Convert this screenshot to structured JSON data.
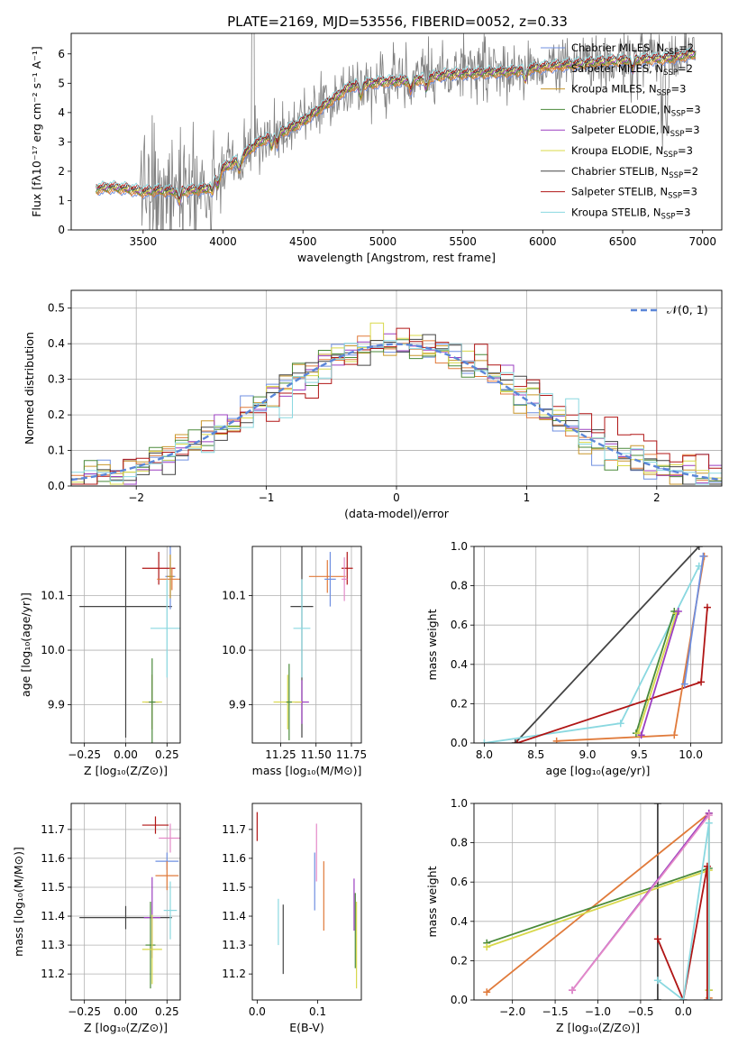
{
  "figure": {
    "title": "PLATE=2169, MJD=53556, FIBERID=0052, z=0.33"
  },
  "chart_data": [
    {
      "id": "spectrum",
      "type": "line",
      "xlabel": "wavelength [Angstrom, rest frame]",
      "ylabel": "Flux [fλ10⁻¹⁷ erg cm⁻² s⁻¹ A⁻¹]",
      "xlim": [
        3050,
        7120
      ],
      "ylim": [
        0,
        6.7
      ],
      "xticks": [
        3500,
        4000,
        4500,
        5000,
        5500,
        6000,
        6500,
        7000
      ],
      "yticks": [
        0,
        1,
        2,
        3,
        4,
        5,
        6
      ],
      "grid": false,
      "legend_placement": "top-right",
      "data_color": "#808080",
      "continuum": {
        "x": [
          3200,
          3300,
          3400,
          3500,
          3600,
          3700,
          3800,
          3900,
          4000,
          4100,
          4200,
          4300,
          4400,
          4500,
          4600,
          4700,
          4800,
          5000,
          5200,
          5400,
          5600,
          5800,
          6000,
          6200,
          6400,
          6600,
          6800,
          6950
        ],
        "y": [
          1.4,
          1.45,
          1.4,
          1.3,
          1.35,
          1.3,
          1.35,
          1.4,
          2.1,
          2.4,
          2.9,
          3.2,
          3.4,
          3.7,
          4.1,
          4.5,
          4.9,
          5.05,
          5.1,
          5.3,
          5.35,
          5.4,
          5.55,
          5.65,
          5.75,
          5.8,
          5.85,
          6.0
        ]
      },
      "series": [
        {
          "name": "Chabrier MILES, N_SSP=2",
          "label": "Chabrier MILES, N",
          "sub": "SSP",
          "suffix": "=2",
          "color": "#6f8fe0"
        },
        {
          "name": "Salpeter MILES, N_SSP=2",
          "label": "Salpeter MILES, N",
          "sub": "SSP",
          "suffix": "=2",
          "color": "#e07a3a"
        },
        {
          "name": "Kroupa MILES, N_SSP=3",
          "label": "Kroupa MILES, N",
          "sub": "SSP",
          "suffix": "=3",
          "color": "#c8962a"
        },
        {
          "name": "Chabrier ELODIE, N_SSP=3",
          "label": "Chabrier ELODIE, N",
          "sub": "SSP",
          "suffix": "=3",
          "color": "#4a8a3a"
        },
        {
          "name": "Salpeter ELODIE, N_SSP=3",
          "label": "Salpeter ELODIE, N",
          "sub": "SSP",
          "suffix": "=3",
          "color": "#9b3fc0"
        },
        {
          "name": "Kroupa ELODIE, N_SSP=3",
          "label": "Kroupa ELODIE, N",
          "sub": "SSP",
          "suffix": "=3",
          "color": "#d8d84a"
        },
        {
          "name": "Chabrier STELIB, N_SSP=2",
          "label": "Chabrier STELIB, N",
          "sub": "SSP",
          "suffix": "=2",
          "color": "#444444"
        },
        {
          "name": "Salpeter STELIB, N_SSP=3",
          "label": "Salpeter STELIB, N",
          "sub": "SSP",
          "suffix": "=3",
          "color": "#b01515"
        },
        {
          "name": "Kroupa STELIB, N_SSP=3",
          "label": "Kroupa STELIB, N",
          "sub": "SSP",
          "suffix": "=3",
          "color": "#8ad8e0"
        }
      ]
    },
    {
      "id": "residuals",
      "type": "line",
      "xlabel": "(data-model)/error",
      "ylabel": "Normed distribution",
      "xlim": [
        -2.5,
        2.5
      ],
      "ylim": [
        0,
        0.55
      ],
      "xticks": [
        -2,
        -1,
        0,
        1,
        2
      ],
      "xtick_labels": [
        "−2",
        "−1",
        "0",
        "1",
        "2"
      ],
      "yticks": [
        0.0,
        0.1,
        0.2,
        0.3,
        0.4,
        0.5
      ],
      "ytick_labels": [
        "0.0",
        "0.1",
        "0.2",
        "0.3",
        "0.4",
        "0.5"
      ],
      "grid": true,
      "legend_placement": "top-right",
      "reference": {
        "name": "N(0,1)",
        "label": "𝒩(0, 1)",
        "color": "#5b86d8"
      },
      "hist_bin_width": 0.1,
      "hist_colors": [
        "#6f8fe0",
        "#e07a3a",
        "#c8962a",
        "#4a8a3a",
        "#9b3fc0",
        "#d8d84a",
        "#444444",
        "#b01515",
        "#8ad8e0"
      ]
    },
    {
      "id": "age-vs-Z",
      "type": "scatter",
      "xlabel": "Z [log₁₀(Z/Z⊙)]",
      "ylabel": "age  [log₁₀(age/yr)]",
      "xlim": [
        -0.33,
        0.33
      ],
      "ylim": [
        9.83,
        10.19
      ],
      "xticks": [
        -0.25,
        0.0,
        0.25
      ],
      "xtick_labels": [
        "−0.25",
        "0.00",
        "0.25"
      ],
      "yticks": [
        9.9,
        10.0,
        10.1
      ],
      "ytick_labels": [
        "9.9",
        "10.0",
        "10.1"
      ],
      "grid": true,
      "points": [
        {
          "series": "Salpeter STELIB",
          "x": 0.2,
          "y": 10.15,
          "xerr": 0.1,
          "yerr": 0.03,
          "color": "#b01515"
        },
        {
          "series": "Salpeter MILES",
          "x": 0.28,
          "y": 10.13,
          "xerr": 0.09,
          "yerr": 0.02,
          "color": "#e07a3a"
        },
        {
          "series": "Chabrier STELIB",
          "x": 0.0,
          "y": 10.08,
          "xerr": 0.28,
          "yerr": 0.24,
          "color": "#444444"
        },
        {
          "series": "Kroupa STELIB",
          "x": 0.25,
          "y": 10.04,
          "xerr": 0.1,
          "yerr": 0.09,
          "color": "#8ad8e0"
        },
        {
          "series": "Salpeter ELODIE",
          "x": 0.16,
          "y": 9.905,
          "xerr": 0.04,
          "yerr": 0.05,
          "color": "#9b3fc0"
        },
        {
          "series": "Kroupa ELODIE",
          "x": 0.16,
          "y": 9.905,
          "xerr": 0.06,
          "yerr": 0.05,
          "color": "#d8d84a"
        },
        {
          "series": "Chabrier ELODIE",
          "x": 0.16,
          "y": 9.905,
          "xerr": 0.02,
          "yerr": 0.08,
          "color": "#4a8a3a"
        },
        {
          "series": "Chabrier MILES",
          "x": 0.27,
          "y": 10.135,
          "xerr": 0.03,
          "yerr": 0.06,
          "color": "#6f8fe0"
        },
        {
          "series": "Kroupa MILES",
          "x": 0.27,
          "y": 10.135,
          "xerr": 0.02,
          "yerr": 0.04,
          "color": "#c8962a"
        }
      ]
    },
    {
      "id": "age-vs-mass",
      "type": "scatter",
      "xlabel": "mass [log₁₀(M/M⊙)]",
      "ylabel": "",
      "xlim": [
        11.05,
        11.82
      ],
      "ylim": [
        9.83,
        10.19
      ],
      "xticks": [
        11.25,
        11.5,
        11.75
      ],
      "xtick_labels": [
        "11.25",
        "11.50",
        "11.75"
      ],
      "yticks": [
        9.9,
        10.0,
        10.1
      ],
      "ytick_labels": [
        "9.9",
        "10.0",
        "10.1"
      ],
      "grid": true,
      "points": [
        {
          "series": "Salpeter STELIB",
          "x": 11.72,
          "y": 10.15,
          "xerr": 0.04,
          "yerr": 0.03,
          "color": "#b01515"
        },
        {
          "series": "Salpeter MILES",
          "x": 11.58,
          "y": 10.135,
          "xerr": 0.13,
          "yerr": 0.03,
          "color": "#e07a3a"
        },
        {
          "series": "Chabrier MILES",
          "x": 11.6,
          "y": 10.13,
          "xerr": 0.04,
          "yerr": 0.05,
          "color": "#6f8fe0"
        },
        {
          "series": "Chabrier STELIB",
          "x": 11.4,
          "y": 10.08,
          "xerr": 0.08,
          "yerr": 0.24,
          "color": "#444444"
        },
        {
          "series": "Kroupa STELIB",
          "x": 11.4,
          "y": 10.04,
          "xerr": 0.06,
          "yerr": 0.09,
          "color": "#8ad8e0"
        },
        {
          "series": "Salpeter ELODIE",
          "x": 11.4,
          "y": 9.905,
          "xerr": 0.05,
          "yerr": 0.04,
          "color": "#9b3fc0"
        },
        {
          "series": "Kroupa ELODIE",
          "x": 11.3,
          "y": 9.905,
          "xerr": 0.1,
          "yerr": 0.05,
          "color": "#d8d84a"
        },
        {
          "series": "Chabrier ELODIE",
          "x": 11.31,
          "y": 9.905,
          "xerr": 0.02,
          "yerr": 0.07,
          "color": "#4a8a3a"
        },
        {
          "series": "Kroupa MILES",
          "x": 11.7,
          "y": 10.13,
          "xerr": 0.02,
          "yerr": 0.04,
          "color": "#e48ac8"
        }
      ]
    },
    {
      "id": "mass-weight-vs-age",
      "type": "line",
      "xlabel": "age  [log₁₀(age/yr)]",
      "ylabel": "mass weight",
      "xlim": [
        7.9,
        10.3
      ],
      "ylim": [
        0,
        1.0
      ],
      "xticks": [
        8.0,
        8.5,
        9.0,
        9.5,
        10.0
      ],
      "xtick_labels": [
        "8.0",
        "8.5",
        "9.0",
        "9.5",
        "10.0"
      ],
      "yticks": [
        0,
        0.2,
        0.4,
        0.6,
        0.8,
        1.0
      ],
      "ytick_labels": [
        "0.0",
        "0.2",
        "0.4",
        "0.6",
        "0.8",
        "1.0"
      ],
      "grid": true,
      "series": [
        {
          "name": "Chabrier STELIB",
          "x": [
            8.3,
            10.08
          ],
          "y": [
            0.0,
            1.0
          ],
          "color": "#444444"
        },
        {
          "name": "Kroupa STELIB",
          "x": [
            8.0,
            9.32,
            10.08
          ],
          "y": [
            0.0,
            0.1,
            0.9
          ],
          "color": "#8ad8e0"
        },
        {
          "name": "Salpeter STELIB",
          "x": [
            8.32,
            10.1,
            10.16
          ],
          "y": [
            0.0,
            0.31,
            0.69
          ],
          "color": "#b01515"
        },
        {
          "name": "Salpeter MILES",
          "x": [
            8.7,
            9.84,
            10.13
          ],
          "y": [
            0.01,
            0.04,
            0.95
          ],
          "color": "#e07a3a"
        },
        {
          "name": "Chabrier ELODIE",
          "x": [
            9.47,
            9.84
          ],
          "y": [
            0.05,
            0.67
          ],
          "color": "#4a8a3a"
        },
        {
          "name": "Kroupa ELODIE",
          "x": [
            9.49,
            9.86
          ],
          "y": [
            0.05,
            0.66
          ],
          "color": "#d8d84a"
        },
        {
          "name": "Salpeter ELODIE",
          "x": [
            9.52,
            9.88
          ],
          "y": [
            0.04,
            0.67
          ],
          "color": "#9b3fc0"
        },
        {
          "name": "Chabrier MILES",
          "x": [
            9.94,
            10.12
          ],
          "y": [
            0.3,
            0.95
          ],
          "color": "#6f8fe0"
        }
      ]
    },
    {
      "id": "mass-vs-Z",
      "type": "scatter",
      "xlabel": "Z [log₁₀(Z/Z⊙)]",
      "ylabel": "mass [log₁₀(M/M⊙)]",
      "xlim": [
        -0.33,
        0.33
      ],
      "ylim": [
        11.11,
        11.79
      ],
      "xticks": [
        -0.25,
        0.0,
        0.25
      ],
      "xtick_labels": [
        "−0.25",
        "0.00",
        "0.25"
      ],
      "yticks": [
        11.2,
        11.3,
        11.4,
        11.5,
        11.6,
        11.7
      ],
      "ytick_labels": [
        "11.2",
        "11.3",
        "11.4",
        "11.5",
        "11.6",
        "11.7"
      ],
      "grid": true,
      "points": [
        {
          "series": "Salpeter STELIB",
          "x": 0.18,
          "y": 11.715,
          "xerr": 0.08,
          "yerr": 0.03,
          "color": "#b01515"
        },
        {
          "series": "Kroupa MILES",
          "x": 0.27,
          "y": 11.67,
          "xerr": 0.07,
          "yerr": 0.05,
          "color": "#e48ac8"
        },
        {
          "series": "Chabrier MILES",
          "x": 0.25,
          "y": 11.59,
          "xerr": 0.07,
          "yerr": 0.03,
          "color": "#6f8fe0"
        },
        {
          "series": "Salpeter MILES",
          "x": 0.25,
          "y": 11.54,
          "xerr": 0.07,
          "yerr": 0.05,
          "color": "#e07a3a"
        },
        {
          "series": "Chabrier STELIB",
          "x": 0.0,
          "y": 11.395,
          "xerr": 0.28,
          "yerr": 0.04,
          "color": "#444444"
        },
        {
          "series": "Salpeter ELODIE",
          "x": 0.16,
          "y": 11.395,
          "xerr": 0.05,
          "yerr": 0.14,
          "color": "#9b3fc0"
        },
        {
          "series": "Chabrier ELODIE",
          "x": 0.15,
          "y": 11.3,
          "xerr": 0.03,
          "yerr": 0.15,
          "color": "#4a8a3a"
        },
        {
          "series": "Kroupa ELODIE",
          "x": 0.16,
          "y": 11.285,
          "xerr": 0.06,
          "yerr": 0.12,
          "color": "#d8d84a"
        },
        {
          "series": "Kroupa STELIB",
          "x": 0.27,
          "y": 11.42,
          "xerr": 0.04,
          "yerr": 0.1,
          "color": "#8ad8e0"
        }
      ]
    },
    {
      "id": "mass-vs-EBV",
      "type": "scatter",
      "xlabel": "E(B-V)",
      "ylabel": "",
      "xlim": [
        -0.008,
        0.172
      ],
      "ylim": [
        11.11,
        11.79
      ],
      "xticks": [
        0.0,
        0.1
      ],
      "xtick_labels": [
        "0.0",
        "0.1"
      ],
      "yticks": [
        11.2,
        11.3,
        11.4,
        11.5,
        11.6,
        11.7
      ],
      "ytick_labels": [
        "11.2",
        "11.3",
        "11.4",
        "11.5",
        "11.6",
        "11.7"
      ],
      "grid": false,
      "points": [
        {
          "series": "Salpeter STELIB",
          "x": 0.0,
          "y": 11.71,
          "xerr": 0,
          "yerr": 0.05,
          "color": "#b01515"
        },
        {
          "series": "Kroupa STELIB",
          "x": 0.035,
          "y": 11.38,
          "xerr": 0,
          "yerr": 0.08,
          "color": "#8ad8e0"
        },
        {
          "series": "Chabrier STELIB",
          "x": 0.043,
          "y": 11.32,
          "xerr": 0,
          "yerr": 0.12,
          "color": "#444444"
        },
        {
          "series": "Chabrier MILES",
          "x": 0.095,
          "y": 11.52,
          "xerr": 0,
          "yerr": 0.1,
          "color": "#6f8fe0"
        },
        {
          "series": "Kroupa MILES",
          "x": 0.098,
          "y": 11.62,
          "xerr": 0,
          "yerr": 0.1,
          "color": "#e48ac8"
        },
        {
          "series": "Salpeter MILES",
          "x": 0.11,
          "y": 11.47,
          "xerr": 0,
          "yerr": 0.12,
          "color": "#e07a3a"
        },
        {
          "series": "Salpeter ELODIE",
          "x": 0.16,
          "y": 11.44,
          "xerr": 0,
          "yerr": 0.09,
          "color": "#9b3fc0"
        },
        {
          "series": "Chabrier ELODIE",
          "x": 0.162,
          "y": 11.35,
          "xerr": 0,
          "yerr": 0.13,
          "color": "#4a8a3a"
        },
        {
          "series": "Kroupa ELODIE",
          "x": 0.164,
          "y": 11.3,
          "xerr": 0,
          "yerr": 0.15,
          "color": "#d8d84a"
        }
      ]
    },
    {
      "id": "mass-weight-vs-Z",
      "type": "line",
      "xlabel": "Z [log₁₀(Z/Z⊙)]",
      "ylabel": "mass weight",
      "xlim": [
        -2.45,
        0.45
      ],
      "ylim": [
        0,
        1.0
      ],
      "xticks": [
        -2.0,
        -1.5,
        -1.0,
        -0.5,
        0.0
      ],
      "xtick_labels": [
        "−2.0",
        "−1.5",
        "−1.0",
        "−0.5",
        "0.0"
      ],
      "yticks": [
        0,
        0.2,
        0.4,
        0.6,
        0.8,
        1.0
      ],
      "ytick_labels": [
        "0.0",
        "0.2",
        "0.4",
        "0.6",
        "0.8",
        "1.0"
      ],
      "grid": true,
      "series": [
        {
          "name": "Chabrier STELIB",
          "x": [
            -0.3,
            -0.3
          ],
          "y": [
            0.0,
            1.0
          ],
          "color": "#444444"
        },
        {
          "name": "Salpeter MILES",
          "x": [
            -2.3,
            0.3,
            0.3
          ],
          "y": [
            0.04,
            0.95,
            0.01
          ],
          "color": "#e07a3a"
        },
        {
          "name": "Chabrier ELODIE",
          "x": [
            -2.3,
            0.3,
            0.3
          ],
          "y": [
            0.29,
            0.67,
            0.05
          ],
          "color": "#4a8a3a"
        },
        {
          "name": "Kroupa ELODIE",
          "x": [
            -2.3,
            0.3,
            0.3
          ],
          "y": [
            0.27,
            0.66,
            0.05
          ],
          "color": "#d8d84a"
        },
        {
          "name": "Salpeter ELODIE",
          "x": [
            -1.3,
            0.3
          ],
          "y": [
            0.05,
            0.95
          ],
          "color": "#9b3fc0"
        },
        {
          "name": "Kroupa MILES",
          "x": [
            -1.3,
            0.3
          ],
          "y": [
            0.05,
            0.94
          ],
          "color": "#e48ac8"
        },
        {
          "name": "Salpeter STELIB",
          "x": [
            -0.3,
            0.0,
            0.28,
            0.28
          ],
          "y": [
            0.31,
            0.0,
            0.68,
            0.0
          ],
          "color": "#b01515"
        },
        {
          "name": "Kroupa STELIB",
          "x": [
            -0.3,
            0.0,
            0.3,
            0.3
          ],
          "y": [
            0.1,
            0.0,
            0.9,
            0.0
          ],
          "color": "#8ad8e0"
        }
      ]
    }
  ]
}
